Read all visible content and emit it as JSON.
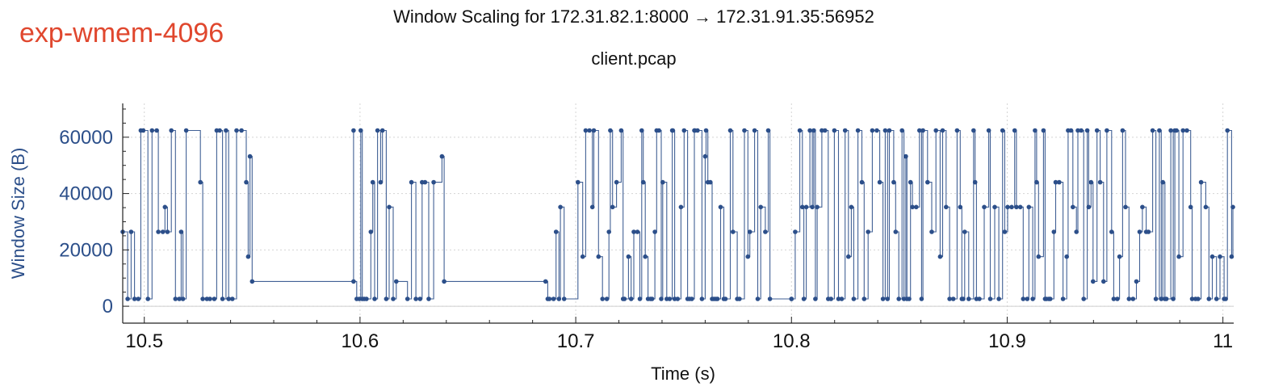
{
  "header": {
    "tag": "exp-wmem-4096",
    "title": "Window Scaling for 172.31.82.1:8000 → 172.31.91.35:56952",
    "subtitle": "client.pcap"
  },
  "colors": {
    "tag": "#e0472e",
    "series": "#2c4f8a",
    "grid": "#d4d4d4"
  },
  "chart_data": {
    "type": "line",
    "title": "Window Scaling for 172.31.82.1:8000 → 172.31.91.35:56952",
    "subtitle": "client.pcap",
    "xlabel": "Time (s)",
    "ylabel": "Window Size (B)",
    "xlim": [
      10.49,
      11.005
    ],
    "ylim": [
      -6000,
      72000
    ],
    "x_ticks": [
      10.5,
      10.6,
      10.7,
      10.8,
      10.9,
      11.0
    ],
    "x_tick_labels": [
      "10.5",
      "10.6",
      "10.7",
      "10.8",
      "10.9",
      "11"
    ],
    "y_ticks": [
      0,
      20000,
      40000,
      60000
    ],
    "y_tick_labels": [
      "0",
      "20000",
      "40000",
      "60000"
    ],
    "grid": true,
    "series": [
      {
        "name": "",
        "markers": true,
        "levels": [
          2600,
          8800,
          17600,
          26400,
          35200,
          44000,
          53200,
          62400
        ],
        "bursts": [
          [
            10.49,
            10.52
          ],
          [
            10.526,
            10.549
          ],
          [
            10.597,
            10.617
          ],
          [
            10.622,
            10.636
          ],
          [
            10.687,
            10.696
          ],
          [
            10.701,
            10.79
          ],
          [
            10.8,
            11.005
          ]
        ],
        "plateaus": [
          {
            "x": [
              10.55,
              10.597
            ],
            "y": 8800
          },
          {
            "x": [
              10.639,
              10.686
            ],
            "y": 8800
          },
          {
            "x": [
              10.745,
              10.755
            ],
            "y": 62400
          },
          {
            "x": [
              10.79,
              10.8
            ],
            "y": 2600
          }
        ],
        "spikes": [
          {
            "x": 10.549,
            "y": 53200
          },
          {
            "x": 10.638,
            "y": 53200
          },
          {
            "x": 10.76,
            "y": 53200
          },
          {
            "x": 10.853,
            "y": 53200
          }
        ]
      }
    ]
  }
}
